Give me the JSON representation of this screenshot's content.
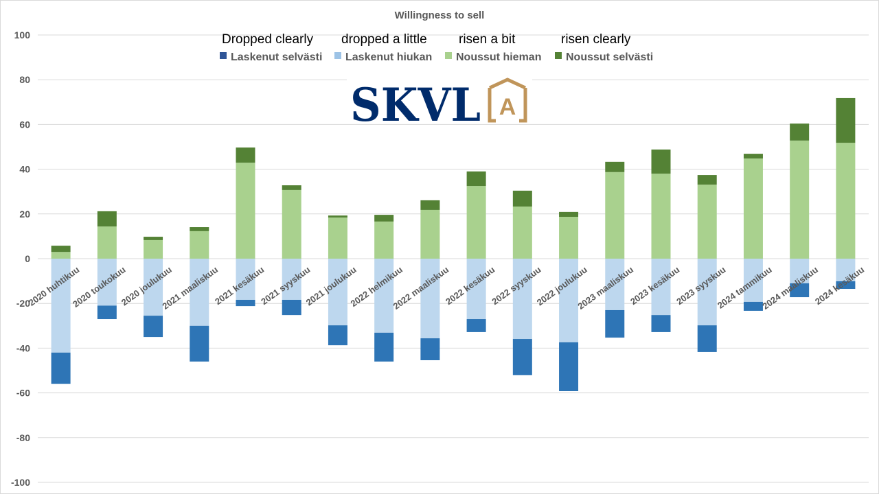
{
  "chart_data": {
    "type": "bar",
    "stacked": true,
    "title": "Willingness to sell",
    "annotations": [
      "Dropped clearly",
      "dropped a little",
      "risen a bit",
      "risen clearly"
    ],
    "logo_text": "SKVLA",
    "ylim": [
      -100,
      100
    ],
    "yticks": [
      100,
      80,
      60,
      40,
      20,
      0,
      -20,
      -40,
      -60,
      -80,
      -100
    ],
    "grid": true,
    "legend_position": "top",
    "categories": [
      "2020 huhtikuu",
      "2020 toukokuu",
      "2020 joulukuu",
      "2021 maaliskuu",
      "2021 kesäkuu",
      "2021 syyskuu",
      "2021 joulukuu",
      "2022 helmikuu",
      "2022 maaliskuu",
      "2022 kesäkuu",
      "2022 syyskuu",
      "2022 joulukuu",
      "2023 maaliskuu",
      "2023 kesäkuu",
      "2023 syyskuu",
      "2024 tammikuu",
      "2024 maaliskuu",
      "2024 kesäkuu"
    ],
    "series": [
      {
        "name": "Laskenut selvästi",
        "color": "#2e75b6",
        "values": [
          -14,
          -6,
          -9.5,
          -16,
          -2.8,
          -6.8,
          -8.9,
          -12.9,
          -9.8,
          -5.8,
          -16.2,
          -21.8,
          -12.3,
          -7.6,
          -11.9,
          -4,
          -6.2,
          -3.4
        ]
      },
      {
        "name": "Laskenut hiukan",
        "color": "#bdd7ee",
        "values": [
          -42,
          -21,
          -25.5,
          -30,
          -18.4,
          -18.4,
          -29.8,
          -33.1,
          -35.6,
          -27,
          -35.9,
          -37.4,
          -23,
          -25.2,
          -29.8,
          -19.3,
          -11,
          -10.1
        ]
      },
      {
        "name": "Noussut hieman",
        "color": "#a9d18e",
        "values": [
          3,
          14.4,
          8.3,
          12.3,
          42.9,
          30.7,
          18.4,
          16.6,
          21.8,
          32.5,
          23.3,
          18.7,
          38.7,
          38,
          33.1,
          44.8,
          52.8,
          51.8
        ]
      },
      {
        "name": "Noussut selvästi",
        "color": "#548235",
        "values": [
          2.8,
          6.8,
          1.5,
          1.8,
          6.8,
          2.1,
          0.9,
          3,
          4.3,
          6.5,
          7.1,
          2.2,
          4.6,
          10.8,
          4.3,
          2.1,
          7.6,
          20
        ]
      }
    ],
    "legend_swatch_colors": [
      "#2f5597",
      "#9dc3e6",
      "#a9d18e",
      "#548235"
    ]
  }
}
